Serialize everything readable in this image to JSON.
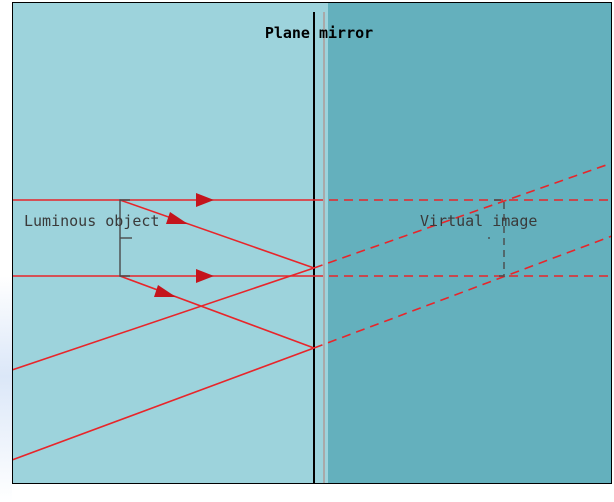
{
  "diagram": {
    "title": "Plane mirror",
    "object_label": "Luminous object",
    "image_label": "Virtual image"
  },
  "colors": {
    "left_panel": "#9dd3dc",
    "right_panel": "#64b0bd",
    "rays": "#e8252a",
    "mirror_line": "#000000",
    "mirror_glass": "#a9a9a9",
    "object_stroke": "#4a4a4a",
    "label_text": "#3a3a3a",
    "title_text": "#000000"
  }
}
